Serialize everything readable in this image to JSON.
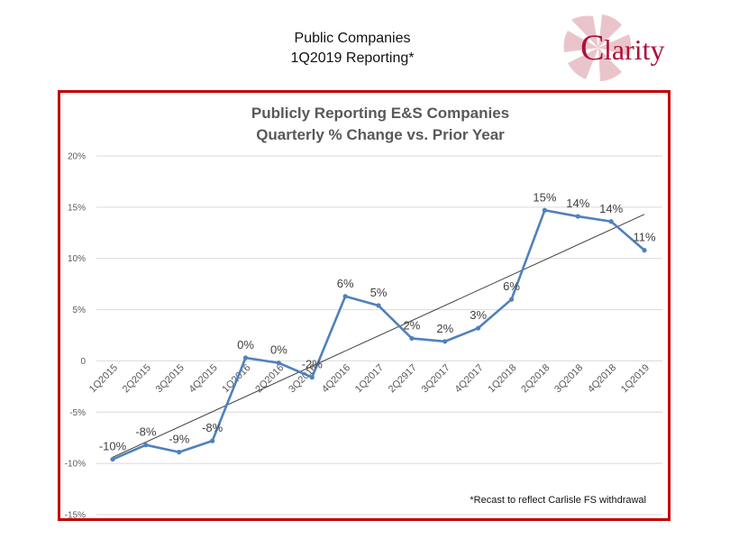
{
  "header": {
    "title_line1": "Public Companies",
    "title_line2": "1Q2019 Reporting*"
  },
  "logo": {
    "text": "Clarity",
    "brand_color": "#b0103a",
    "swirl_color": "#e9c5cb"
  },
  "colors": {
    "frame_border": "#c00000",
    "series_line": "#4f81bd",
    "trend_line": "#404040",
    "gridline": "#d9d9d9"
  },
  "chart_data": {
    "type": "line",
    "title": "Publicly Reporting E&S Companies",
    "subtitle": "Quarterly % Change vs. Prior Year",
    "categories": [
      "1Q2015",
      "2Q2015",
      "3Q2015",
      "4Q2015",
      "1Q2016",
      "2Q2016",
      "3Q2016",
      "4Q2016",
      "1Q2017",
      "2Q2917",
      "3Q2017",
      "4Q2017",
      "1Q2018",
      "2Q2018",
      "3Q2018",
      "4Q2018",
      "1Q2019"
    ],
    "series": [
      {
        "values": [
          -9.6,
          -8.2,
          -8.9,
          -7.8,
          0.3,
          -0.2,
          -1.6,
          6.3,
          5.4,
          2.2,
          1.9,
          3.2,
          6.0,
          14.7,
          14.1,
          13.6,
          10.8
        ],
        "labels": [
          "-10%",
          "-8%",
          "-9%",
          "-8%",
          "0%",
          "0%",
          "-2%",
          "6%",
          "5%",
          "2%",
          "2%",
          "3%",
          "6%",
          "15%",
          "14%",
          "14%",
          "11%"
        ]
      }
    ],
    "trendline": {
      "type": "linear",
      "start": -9.4,
      "end": 14.3
    },
    "ylim": [
      -15,
      20
    ],
    "yticks": [
      20,
      15,
      10,
      5,
      0,
      -5,
      -10,
      -15
    ],
    "ytick_labels": [
      "20%",
      "15%",
      "10%",
      "5%",
      "0",
      "-5%",
      "-10%",
      "-15%"
    ],
    "grid": true,
    "legend": "none",
    "annotation": "*Recast to reflect Carlisle FS withdrawal"
  }
}
